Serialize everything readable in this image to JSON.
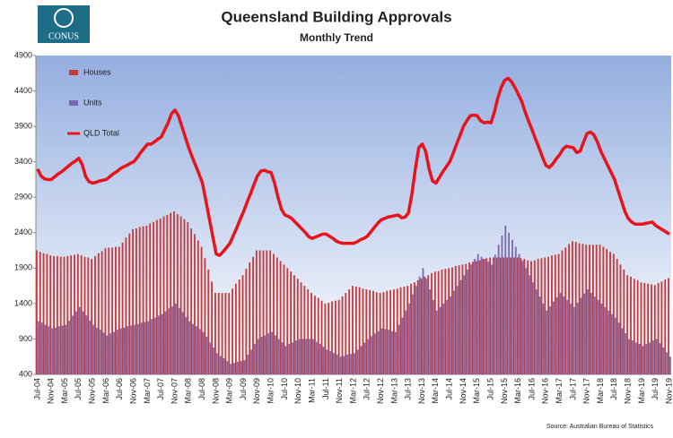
{
  "logo": "CONUS",
  "chart_data": {
    "type": "bar",
    "title": "Queensland Building Approvals",
    "subtitle": "Monthly Trend",
    "source": "Source: Australian Bureau of Statistics",
    "categories": [
      "Jul-04",
      null,
      null,
      null,
      "Nov-04",
      null,
      null,
      null,
      "Mar-05",
      null,
      null,
      null,
      "Jul-05",
      null,
      null,
      null,
      "Nov-05",
      null,
      null,
      null,
      "Mar-06",
      null,
      null,
      null,
      "Jul-06",
      null,
      null,
      null,
      "Nov-06",
      null,
      null,
      null,
      "Mar-07",
      null,
      null,
      null,
      "Jul-07",
      null,
      null,
      null,
      "Nov-07",
      null,
      null,
      null,
      "Mar-08",
      null,
      null,
      null,
      "Jul-08",
      null,
      null,
      null,
      "Nov-08",
      null,
      null,
      null,
      "Mar-09",
      null,
      null,
      null,
      "Jul-09",
      null,
      null,
      null,
      "Nov-09",
      null,
      null,
      null,
      "Mar-10",
      null,
      null,
      null,
      "Jul-10",
      null,
      null,
      null,
      "Nov-10",
      null,
      null,
      null,
      "Mar-11",
      null,
      null,
      null,
      "Jul-11",
      null,
      null,
      null,
      "Nov-11",
      null,
      null,
      null,
      "Mar-12",
      null,
      null,
      null,
      "Jul-12",
      null,
      null,
      null,
      "Nov-12",
      null,
      null,
      null,
      "Mar-13",
      null,
      null,
      null,
      "Jul-13",
      null,
      null,
      null,
      "Nov-13",
      null,
      null,
      null,
      "Mar-14",
      null,
      null,
      null,
      "Jul-14",
      null,
      null,
      null,
      "Nov-14",
      null,
      null,
      null,
      "Mar-15",
      null,
      null,
      null,
      "Jul-15",
      null,
      null,
      null,
      "Nov-15",
      null,
      null,
      null,
      "Mar-16",
      null,
      null,
      null,
      "Jul-16",
      null,
      null,
      null,
      "Nov-16",
      null,
      null,
      null,
      "Mar-17",
      null,
      null,
      null,
      "Jul-17",
      null,
      null,
      null,
      "Nov-17",
      null,
      null,
      null,
      "Mar-18",
      null,
      null,
      null,
      "Jul-18",
      null,
      null,
      null,
      "Nov-18",
      null,
      null,
      null,
      "Mar-19",
      null,
      null,
      null,
      "Jul-19",
      null,
      null,
      null,
      "Nov-19"
    ],
    "series": [
      {
        "name": "Houses",
        "type": "bar",
        "color": "#c23b3d",
        "values": [
          2150,
          2130,
          2110,
          2100,
          2080,
          2070,
          2070,
          2060,
          2060,
          2070,
          2080,
          2090,
          2100,
          2080,
          2060,
          2050,
          2030,
          2070,
          2110,
          2140,
          2180,
          2190,
          2190,
          2200,
          2200,
          2260,
          2330,
          2390,
          2450,
          2460,
          2480,
          2490,
          2500,
          2530,
          2550,
          2580,
          2600,
          2630,
          2650,
          2680,
          2700,
          2660,
          2630,
          2590,
          2550,
          2460,
          2380,
          2290,
          2200,
          2040,
          1880,
          1710,
          1550,
          1550,
          1550,
          1550,
          1550,
          1610,
          1680,
          1740,
          1800,
          1890,
          1980,
          2060,
          2150,
          2150,
          2150,
          2150,
          2150,
          2100,
          2050,
          2000,
          1950,
          1900,
          1850,
          1800,
          1750,
          1700,
          1650,
          1600,
          1550,
          1510,
          1480,
          1440,
          1400,
          1410,
          1430,
          1440,
          1450,
          1500,
          1550,
          1600,
          1650,
          1640,
          1630,
          1610,
          1600,
          1590,
          1580,
          1560,
          1550,
          1560,
          1580,
          1590,
          1600,
          1610,
          1630,
          1640,
          1650,
          1680,
          1700,
          1730,
          1750,
          1780,
          1800,
          1830,
          1850,
          1860,
          1880,
          1890,
          1900,
          1910,
          1930,
          1940,
          1950,
          1960,
          1980,
          1990,
          2000,
          2010,
          2030,
          2040,
          2050,
          2050,
          2050,
          2050,
          2050,
          2050,
          2050,
          2050,
          2050,
          2040,
          2030,
          2010,
          2000,
          2010,
          2030,
          2040,
          2050,
          2060,
          2080,
          2090,
          2100,
          2150,
          2190,
          2240,
          2280,
          2270,
          2250,
          2240,
          2230,
          2230,
          2230,
          2230,
          2230,
          2200,
          2170,
          2130,
          2100,
          2030,
          1950,
          1880,
          1800,
          1780,
          1750,
          1730,
          1700,
          1690,
          1680,
          1670,
          1660,
          1690,
          1710,
          1740,
          1760
        ]
      },
      {
        "name": "Units",
        "type": "bar",
        "color": "#7a68b2",
        "values": [
          1150,
          1130,
          1100,
          1080,
          1050,
          1060,
          1080,
          1090,
          1100,
          1160,
          1230,
          1290,
          1350,
          1290,
          1230,
          1160,
          1100,
          1060,
          1030,
          990,
          950,
          980,
          1000,
          1030,
          1050,
          1060,
          1080,
          1090,
          1100,
          1110,
          1130,
          1140,
          1150,
          1180,
          1200,
          1230,
          1250,
          1290,
          1330,
          1360,
          1400,
          1340,
          1280,
          1210,
          1150,
          1110,
          1080,
          1040,
          1000,
          930,
          850,
          780,
          700,
          660,
          630,
          590,
          550,
          560,
          580,
          590,
          600,
          680,
          750,
          830,
          900,
          930,
          950,
          980,
          1000,
          950,
          900,
          850,
          800,
          830,
          850,
          880,
          900,
          900,
          900,
          900,
          900,
          860,
          830,
          790,
          750,
          730,
          700,
          680,
          650,
          660,
          680,
          690,
          700,
          750,
          800,
          850,
          900,
          940,
          980,
          1010,
          1050,
          1040,
          1030,
          1010,
          1000,
          1100,
          1200,
          1300,
          1400,
          1530,
          1650,
          1780,
          1900,
          1750,
          1600,
          1450,
          1300,
          1350,
          1400,
          1450,
          1500,
          1580,
          1650,
          1730,
          1800,
          1880,
          1950,
          2030,
          2100,
          2060,
          2030,
          1990,
          1950,
          2090,
          2230,
          2360,
          2500,
          2400,
          2300,
          2200,
          2100,
          2000,
          1900,
          1800,
          1700,
          1600,
          1500,
          1400,
          1300,
          1360,
          1430,
          1490,
          1550,
          1500,
          1450,
          1400,
          1350,
          1410,
          1480,
          1540,
          1600,
          1550,
          1500,
          1450,
          1400,
          1350,
          1300,
          1250,
          1200,
          1130,
          1050,
          980,
          900,
          880,
          850,
          830,
          800,
          830,
          850,
          880,
          900,
          840,
          780,
          710,
          650
        ]
      },
      {
        "name": "QLD Total",
        "type": "line",
        "color": "#e8141b",
        "values": [
          3300,
          3200,
          3160,
          3150,
          3150,
          3190,
          3230,
          3260,
          3300,
          3340,
          3380,
          3410,
          3450,
          3360,
          3190,
          3120,
          3100,
          3110,
          3130,
          3140,
          3150,
          3190,
          3230,
          3260,
          3300,
          3330,
          3350,
          3380,
          3400,
          3460,
          3530,
          3590,
          3650,
          3650,
          3680,
          3720,
          3750,
          3850,
          3950,
          4080,
          4130,
          4050,
          3900,
          3750,
          3600,
          3470,
          3350,
          3230,
          3100,
          2850,
          2600,
          2350,
          2100,
          2080,
          2130,
          2190,
          2250,
          2360,
          2470,
          2590,
          2700,
          2830,
          2950,
          3080,
          3200,
          3270,
          3280,
          3260,
          3250,
          3100,
          2900,
          2730,
          2650,
          2630,
          2600,
          2550,
          2500,
          2450,
          2400,
          2340,
          2320,
          2340,
          2360,
          2380,
          2380,
          2350,
          2320,
          2280,
          2260,
          2250,
          2250,
          2250,
          2250,
          2270,
          2300,
          2320,
          2350,
          2410,
          2470,
          2530,
          2580,
          2600,
          2620,
          2630,
          2640,
          2650,
          2610,
          2620,
          2680,
          2950,
          3300,
          3600,
          3650,
          3550,
          3300,
          3130,
          3100,
          3180,
          3260,
          3330,
          3400,
          3520,
          3650,
          3770,
          3900,
          3980,
          4050,
          4060,
          4050,
          3980,
          3950,
          3960,
          3950,
          4100,
          4300,
          4450,
          4550,
          4580,
          4530,
          4450,
          4350,
          4250,
          4100,
          3970,
          3850,
          3720,
          3600,
          3470,
          3350,
          3320,
          3370,
          3440,
          3500,
          3580,
          3620,
          3610,
          3600,
          3530,
          3550,
          3680,
          3800,
          3820,
          3780,
          3680,
          3550,
          3450,
          3350,
          3250,
          3150,
          3000,
          2850,
          2700,
          2600,
          2550,
          2520,
          2520,
          2520,
          2530,
          2540,
          2550,
          2500,
          2470,
          2440,
          2410,
          2380
        ]
      }
    ],
    "ylim": [
      400,
      4900
    ],
    "yticks": [
      400,
      900,
      1400,
      1900,
      2400,
      2900,
      3400,
      3900,
      4400,
      4900
    ],
    "grid": false
  }
}
